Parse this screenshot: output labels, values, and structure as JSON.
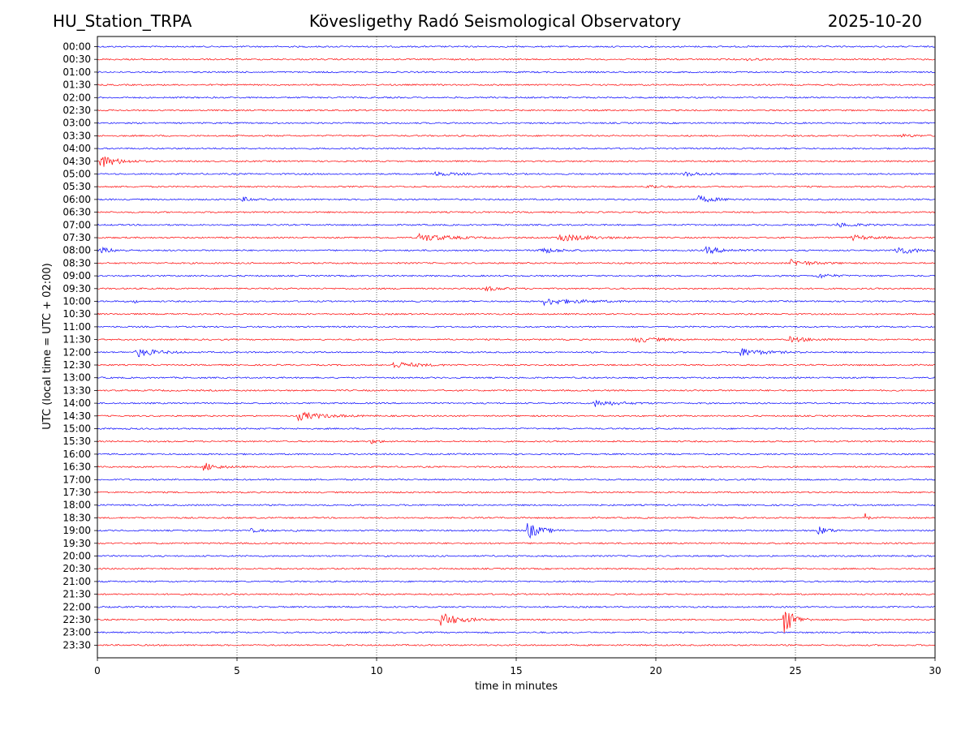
{
  "header": {
    "station": "HU_Station_TRPA",
    "observatory": "Kövesligethy Radó Seismological Observatory",
    "date": "2025-10-20"
  },
  "chart_data": {
    "type": "line",
    "title": "Kövesligethy Radó Seismological Observatory",
    "xlabel": "time in minutes",
    "ylabel": "UTC (local time = UTC + 02:00)",
    "xlim": [
      0,
      30
    ],
    "x_ticks": [
      0,
      5,
      10,
      15,
      20,
      25,
      30
    ],
    "x_tick_labels": [
      "0",
      "5",
      "10",
      "15",
      "20",
      "25",
      "30"
    ],
    "grid": "vertical dotted lines at x ticks",
    "series_colors": [
      "#0000ff",
      "#ff0000"
    ],
    "rows": [
      {
        "label": "00:00",
        "color": "#0000ff",
        "events": []
      },
      {
        "label": "00:30",
        "color": "#ff0000",
        "events": [
          {
            "t": 23.3,
            "amp": 2.5,
            "dur": 0.5
          }
        ]
      },
      {
        "label": "01:00",
        "color": "#0000ff",
        "events": []
      },
      {
        "label": "01:30",
        "color": "#ff0000",
        "events": []
      },
      {
        "label": "02:00",
        "color": "#0000ff",
        "events": []
      },
      {
        "label": "02:30",
        "color": "#ff0000",
        "events": []
      },
      {
        "label": "03:00",
        "color": "#0000ff",
        "events": []
      },
      {
        "label": "03:30",
        "color": "#ff0000",
        "events": [
          {
            "t": 28.8,
            "amp": 2,
            "dur": 0.8
          }
        ]
      },
      {
        "label": "04:00",
        "color": "#0000ff",
        "events": []
      },
      {
        "label": "04:30",
        "color": "#ff0000",
        "events": [
          {
            "t": 0.1,
            "amp": 8,
            "dur": 1.2
          }
        ]
      },
      {
        "label": "05:00",
        "color": "#0000ff",
        "events": [
          {
            "t": 12.0,
            "amp": 2.5,
            "dur": 1.5
          },
          {
            "t": 21.0,
            "amp": 2.5,
            "dur": 1.5
          }
        ]
      },
      {
        "label": "05:30",
        "color": "#ff0000",
        "events": [
          {
            "t": 19.7,
            "amp": 2.5,
            "dur": 0.8
          }
        ]
      },
      {
        "label": "06:00",
        "color": "#0000ff",
        "events": [
          {
            "t": 5.2,
            "amp": 2.5,
            "dur": 1.0
          },
          {
            "t": 21.5,
            "amp": 4,
            "dur": 1.3
          }
        ]
      },
      {
        "label": "06:30",
        "color": "#ff0000",
        "events": []
      },
      {
        "label": "07:00",
        "color": "#0000ff",
        "events": [
          {
            "t": 26.5,
            "amp": 2.5,
            "dur": 1.5
          }
        ]
      },
      {
        "label": "07:30",
        "color": "#ff0000",
        "events": [
          {
            "t": 11.5,
            "amp": 5,
            "dur": 2.0
          },
          {
            "t": 16.5,
            "amp": 5,
            "dur": 2.0
          },
          {
            "t": 27.0,
            "amp": 3,
            "dur": 1.5
          }
        ]
      },
      {
        "label": "08:00",
        "color": "#0000ff",
        "events": [
          {
            "t": 0.1,
            "amp": 3.5,
            "dur": 1.0
          },
          {
            "t": 15.8,
            "amp": 4,
            "dur": 1.3
          },
          {
            "t": 21.8,
            "amp": 4,
            "dur": 1.5
          },
          {
            "t": 28.6,
            "amp": 6,
            "dur": 1.2
          }
        ]
      },
      {
        "label": "08:30",
        "color": "#ff0000",
        "events": [
          {
            "t": 24.8,
            "amp": 4,
            "dur": 1.5
          }
        ]
      },
      {
        "label": "09:00",
        "color": "#0000ff",
        "events": [
          {
            "t": 25.8,
            "amp": 3,
            "dur": 1.0
          }
        ]
      },
      {
        "label": "09:30",
        "color": "#ff0000",
        "events": [
          {
            "t": 13.8,
            "amp": 3,
            "dur": 1.2
          }
        ]
      },
      {
        "label": "10:00",
        "color": "#0000ff",
        "events": [
          {
            "t": 16.0,
            "amp": 4,
            "dur": 2.5
          },
          {
            "t": 1.3,
            "amp": 3,
            "dur": 0.2
          }
        ]
      },
      {
        "label": "10:30",
        "color": "#ff0000",
        "events": []
      },
      {
        "label": "11:00",
        "color": "#0000ff",
        "events": []
      },
      {
        "label": "11:30",
        "color": "#ff0000",
        "events": [
          {
            "t": 19.2,
            "amp": 3.5,
            "dur": 1.8
          },
          {
            "t": 24.8,
            "amp": 3,
            "dur": 1.5
          }
        ]
      },
      {
        "label": "12:00",
        "color": "#0000ff",
        "events": [
          {
            "t": 1.4,
            "amp": 6,
            "dur": 1.3
          },
          {
            "t": 23.0,
            "amp": 5,
            "dur": 1.6
          }
        ]
      },
      {
        "label": "12:30",
        "color": "#ff0000",
        "events": [
          {
            "t": 10.6,
            "amp": 4,
            "dur": 1.6
          }
        ]
      },
      {
        "label": "13:00",
        "color": "#0000ff",
        "events": []
      },
      {
        "label": "13:30",
        "color": "#ff0000",
        "events": []
      },
      {
        "label": "14:00",
        "color": "#0000ff",
        "events": [
          {
            "t": 17.8,
            "amp": 4,
            "dur": 1.5
          }
        ]
      },
      {
        "label": "14:30",
        "color": "#ff0000",
        "events": [
          {
            "t": 7.2,
            "amp": 5,
            "dur": 1.8
          }
        ]
      },
      {
        "label": "15:00",
        "color": "#0000ff",
        "events": []
      },
      {
        "label": "15:30",
        "color": "#ff0000",
        "events": [
          {
            "t": 9.8,
            "amp": 2.5,
            "dur": 0.6
          }
        ]
      },
      {
        "label": "16:00",
        "color": "#0000ff",
        "events": []
      },
      {
        "label": "16:30",
        "color": "#ff0000",
        "events": [
          {
            "t": 3.8,
            "amp": 5,
            "dur": 1.0
          }
        ]
      },
      {
        "label": "17:00",
        "color": "#0000ff",
        "events": []
      },
      {
        "label": "17:30",
        "color": "#ff0000",
        "events": []
      },
      {
        "label": "18:00",
        "color": "#0000ff",
        "events": []
      },
      {
        "label": "18:30",
        "color": "#ff0000",
        "events": [
          {
            "t": 27.5,
            "amp": 5,
            "dur": 0.2
          }
        ]
      },
      {
        "label": "19:00",
        "color": "#0000ff",
        "events": [
          {
            "t": 15.4,
            "amp": 11,
            "dur": 0.9
          },
          {
            "t": 25.8,
            "amp": 5,
            "dur": 0.8
          },
          {
            "t": 5.5,
            "amp": 2,
            "dur": 0.8
          },
          {
            "t": 7.0,
            "amp": 3,
            "dur": 0.2
          }
        ]
      },
      {
        "label": "19:30",
        "color": "#ff0000",
        "events": []
      },
      {
        "label": "20:00",
        "color": "#0000ff",
        "events": []
      },
      {
        "label": "20:30",
        "color": "#ff0000",
        "events": []
      },
      {
        "label": "21:00",
        "color": "#0000ff",
        "events": []
      },
      {
        "label": "21:30",
        "color": "#ff0000",
        "events": []
      },
      {
        "label": "22:00",
        "color": "#0000ff",
        "events": []
      },
      {
        "label": "22:30",
        "color": "#ff0000",
        "events": [
          {
            "t": 12.3,
            "amp": 9,
            "dur": 1.3
          },
          {
            "t": 24.6,
            "amp": 18,
            "dur": 0.7
          }
        ]
      },
      {
        "label": "23:00",
        "color": "#0000ff",
        "events": []
      },
      {
        "label": "23:30",
        "color": "#ff0000",
        "events": []
      }
    ]
  }
}
